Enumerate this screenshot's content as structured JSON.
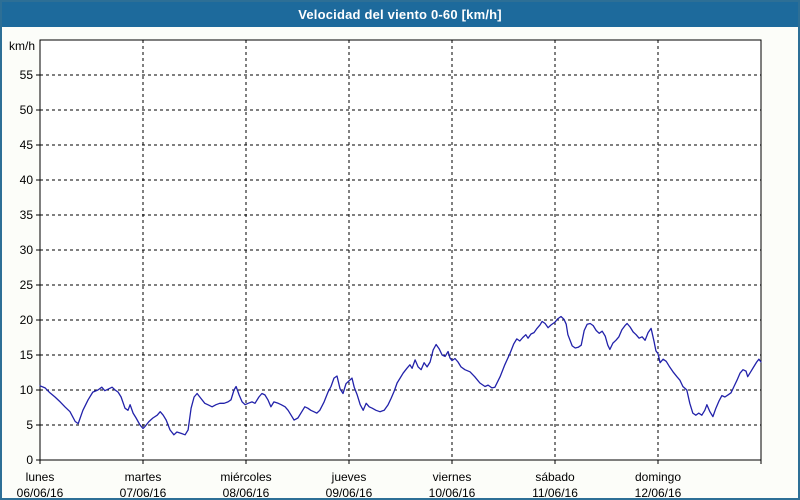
{
  "window": {
    "title": "Velocidad del viento 0-60 [km/h]"
  },
  "colors": {
    "title_bar": "#1d6a9c",
    "title_text": "#ffffff",
    "frame_border": "#2d6f96",
    "background": "#fcfdf9",
    "plot_background": "#ffffff",
    "plot_border": "#000000",
    "grid": "#000000",
    "line": "#2222aa",
    "label_text": "#000000"
  },
  "chart_data": {
    "type": "line",
    "title": "Velocidad del viento 0-60 [km/h]",
    "ylabel": "km/h",
    "xlabel": "",
    "ylim": [
      0,
      60
    ],
    "xlim_hours": [
      0,
      168
    ],
    "yticks": [
      0,
      5,
      10,
      15,
      20,
      25,
      30,
      35,
      40,
      45,
      50,
      55
    ],
    "grid": "dashed",
    "legend": "none",
    "x_axis_days": [
      {
        "name": "lunes",
        "date": "06/06/16"
      },
      {
        "name": "martes",
        "date": "07/06/16"
      },
      {
        "name": "miércoles",
        "date": "08/06/16"
      },
      {
        "name": "jueves",
        "date": "09/06/16"
      },
      {
        "name": "viernes",
        "date": "10/06/16"
      },
      {
        "name": "sábado",
        "date": "11/06/16"
      },
      {
        "name": "domingo",
        "date": "12/06/16"
      }
    ],
    "series": [
      {
        "name": "Velocidad del viento [km/h]",
        "points": [
          [
            0.0,
            10.6
          ],
          [
            1.2,
            10.3
          ],
          [
            2.3,
            9.6
          ],
          [
            3.5,
            9.0
          ],
          [
            4.7,
            8.3
          ],
          [
            5.8,
            7.6
          ],
          [
            7.0,
            6.9
          ],
          [
            8.2,
            5.5
          ],
          [
            8.9,
            5.2
          ],
          [
            10.0,
            7.1
          ],
          [
            11.2,
            8.6
          ],
          [
            12.3,
            9.7
          ],
          [
            13.5,
            10.0
          ],
          [
            14.4,
            10.4
          ],
          [
            15.1,
            9.9
          ],
          [
            15.8,
            10.1
          ],
          [
            16.8,
            10.4
          ],
          [
            17.5,
            10.0
          ],
          [
            18.2,
            9.7
          ],
          [
            18.9,
            9.0
          ],
          [
            19.8,
            7.4
          ],
          [
            20.5,
            7.1
          ],
          [
            21.0,
            7.9
          ],
          [
            21.7,
            6.7
          ],
          [
            22.4,
            6.0
          ],
          [
            23.3,
            5.0
          ],
          [
            24.0,
            4.5
          ],
          [
            24.5,
            4.8
          ],
          [
            25.4,
            5.5
          ],
          [
            26.3,
            6.0
          ],
          [
            27.3,
            6.4
          ],
          [
            28.0,
            6.9
          ],
          [
            28.7,
            6.4
          ],
          [
            29.4,
            5.7
          ],
          [
            30.3,
            4.3
          ],
          [
            31.2,
            3.6
          ],
          [
            31.9,
            4.0
          ],
          [
            32.9,
            3.8
          ],
          [
            33.8,
            3.6
          ],
          [
            34.5,
            4.3
          ],
          [
            35.2,
            7.4
          ],
          [
            35.9,
            9.0
          ],
          [
            36.6,
            9.5
          ],
          [
            37.5,
            8.8
          ],
          [
            38.4,
            8.1
          ],
          [
            39.1,
            7.9
          ],
          [
            40.1,
            7.6
          ],
          [
            41.0,
            7.9
          ],
          [
            41.9,
            8.1
          ],
          [
            42.9,
            8.1
          ],
          [
            43.8,
            8.3
          ],
          [
            44.5,
            8.6
          ],
          [
            45.2,
            10.0
          ],
          [
            45.7,
            10.5
          ],
          [
            46.4,
            9.3
          ],
          [
            47.1,
            8.3
          ],
          [
            47.8,
            7.9
          ],
          [
            48.5,
            8.1
          ],
          [
            49.4,
            8.3
          ],
          [
            50.1,
            8.1
          ],
          [
            51.0,
            9.0
          ],
          [
            51.7,
            9.5
          ],
          [
            52.4,
            9.3
          ],
          [
            53.1,
            8.6
          ],
          [
            53.8,
            7.6
          ],
          [
            54.5,
            8.3
          ],
          [
            55.5,
            8.1
          ],
          [
            56.2,
            7.9
          ],
          [
            57.1,
            7.6
          ],
          [
            57.8,
            7.1
          ],
          [
            58.5,
            6.4
          ],
          [
            59.2,
            5.7
          ],
          [
            60.1,
            6.0
          ],
          [
            61.0,
            6.9
          ],
          [
            61.7,
            7.6
          ],
          [
            62.4,
            7.4
          ],
          [
            63.1,
            7.1
          ],
          [
            63.8,
            6.9
          ],
          [
            64.5,
            6.7
          ],
          [
            65.2,
            7.1
          ],
          [
            66.2,
            8.3
          ],
          [
            67.1,
            9.7
          ],
          [
            67.8,
            10.5
          ],
          [
            68.5,
            11.7
          ],
          [
            69.2,
            12.0
          ],
          [
            69.9,
            10.2
          ],
          [
            70.6,
            9.5
          ],
          [
            71.3,
            10.9
          ],
          [
            72.0,
            11.3
          ],
          [
            72.7,
            11.7
          ],
          [
            73.2,
            10.4
          ],
          [
            73.9,
            9.3
          ],
          [
            74.6,
            7.9
          ],
          [
            75.3,
            7.1
          ],
          [
            76.0,
            8.1
          ],
          [
            76.7,
            7.6
          ],
          [
            77.4,
            7.4
          ],
          [
            78.3,
            7.1
          ],
          [
            79.2,
            6.9
          ],
          [
            80.2,
            7.1
          ],
          [
            81.1,
            7.9
          ],
          [
            81.8,
            8.8
          ],
          [
            82.5,
            9.8
          ],
          [
            83.2,
            11.0
          ],
          [
            83.9,
            11.7
          ],
          [
            84.6,
            12.4
          ],
          [
            85.5,
            13.1
          ],
          [
            86.2,
            13.6
          ],
          [
            86.7,
            13.1
          ],
          [
            87.4,
            14.3
          ],
          [
            88.1,
            13.3
          ],
          [
            88.8,
            12.9
          ],
          [
            89.5,
            13.9
          ],
          [
            90.2,
            13.3
          ],
          [
            90.9,
            14.0
          ],
          [
            91.6,
            15.7
          ],
          [
            92.3,
            16.5
          ],
          [
            93.0,
            15.9
          ],
          [
            93.7,
            15.0
          ],
          [
            94.4,
            14.8
          ],
          [
            95.1,
            15.5
          ],
          [
            95.5,
            14.6
          ],
          [
            96.0,
            14.2
          ],
          [
            96.7,
            14.5
          ],
          [
            97.4,
            14.0
          ],
          [
            98.1,
            13.3
          ],
          [
            99.0,
            12.9
          ],
          [
            100.2,
            12.6
          ],
          [
            101.3,
            11.9
          ],
          [
            102.5,
            11.0
          ],
          [
            103.7,
            10.5
          ],
          [
            104.4,
            10.7
          ],
          [
            105.3,
            10.3
          ],
          [
            106.0,
            10.4
          ],
          [
            107.2,
            11.9
          ],
          [
            108.3,
            13.6
          ],
          [
            109.5,
            15.2
          ],
          [
            110.4,
            16.6
          ],
          [
            111.1,
            17.3
          ],
          [
            111.8,
            17.0
          ],
          [
            112.5,
            17.5
          ],
          [
            113.2,
            17.9
          ],
          [
            113.7,
            17.4
          ],
          [
            114.4,
            18.0
          ],
          [
            115.1,
            18.2
          ],
          [
            115.8,
            18.8
          ],
          [
            116.5,
            19.3
          ],
          [
            117.0,
            19.8
          ],
          [
            117.7,
            19.5
          ],
          [
            118.4,
            18.9
          ],
          [
            119.1,
            19.3
          ],
          [
            120.0,
            19.7
          ],
          [
            120.7,
            20.2
          ],
          [
            121.4,
            20.5
          ],
          [
            122.1,
            20.1
          ],
          [
            122.6,
            19.4
          ],
          [
            123.0,
            17.9
          ],
          [
            124.0,
            16.3
          ],
          [
            124.7,
            16.0
          ],
          [
            125.4,
            16.1
          ],
          [
            126.1,
            16.4
          ],
          [
            126.8,
            18.5
          ],
          [
            127.5,
            19.4
          ],
          [
            128.2,
            19.5
          ],
          [
            128.9,
            19.2
          ],
          [
            129.6,
            18.5
          ],
          [
            130.3,
            18.1
          ],
          [
            131.0,
            18.4
          ],
          [
            131.7,
            17.7
          ],
          [
            132.3,
            16.4
          ],
          [
            132.8,
            15.8
          ],
          [
            133.5,
            16.7
          ],
          [
            134.2,
            17.1
          ],
          [
            134.9,
            17.6
          ],
          [
            135.6,
            18.6
          ],
          [
            136.3,
            19.2
          ],
          [
            136.8,
            19.5
          ],
          [
            137.5,
            19.0
          ],
          [
            138.2,
            18.3
          ],
          [
            138.9,
            17.9
          ],
          [
            139.6,
            17.4
          ],
          [
            140.3,
            17.6
          ],
          [
            141.0,
            17.1
          ],
          [
            141.7,
            18.2
          ],
          [
            142.4,
            18.8
          ],
          [
            143.1,
            16.9
          ],
          [
            143.5,
            15.6
          ],
          [
            144.0,
            15.2
          ],
          [
            144.5,
            13.9
          ],
          [
            145.2,
            14.4
          ],
          [
            145.9,
            14.1
          ],
          [
            146.6,
            13.4
          ],
          [
            147.5,
            12.6
          ],
          [
            148.4,
            11.9
          ],
          [
            149.1,
            11.4
          ],
          [
            149.8,
            10.5
          ],
          [
            150.7,
            10.0
          ],
          [
            151.4,
            8.1
          ],
          [
            152.1,
            6.7
          ],
          [
            152.8,
            6.4
          ],
          [
            153.5,
            6.7
          ],
          [
            154.2,
            6.4
          ],
          [
            154.9,
            7.1
          ],
          [
            155.4,
            7.9
          ],
          [
            156.1,
            6.9
          ],
          [
            156.8,
            6.2
          ],
          [
            157.5,
            7.4
          ],
          [
            158.2,
            8.4
          ],
          [
            158.9,
            9.2
          ],
          [
            159.6,
            9.0
          ],
          [
            160.3,
            9.3
          ],
          [
            161.0,
            9.6
          ],
          [
            161.7,
            10.5
          ],
          [
            162.4,
            11.4
          ],
          [
            163.1,
            12.4
          ],
          [
            163.8,
            12.9
          ],
          [
            164.5,
            12.7
          ],
          [
            164.9,
            11.9
          ],
          [
            165.6,
            12.6
          ],
          [
            166.3,
            13.3
          ],
          [
            167.0,
            14.0
          ],
          [
            167.5,
            14.4
          ],
          [
            168.0,
            14.0
          ]
        ]
      }
    ]
  }
}
